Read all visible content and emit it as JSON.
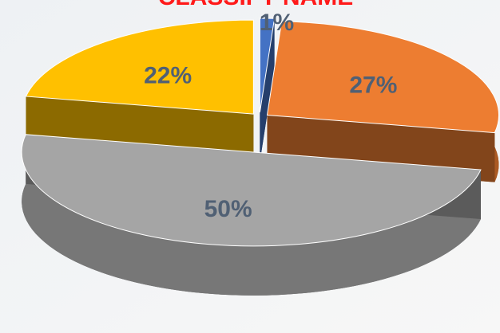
{
  "chart_data": {
    "type": "pie3d",
    "title": "CLASSIFY NAME",
    "values": [
      1,
      27,
      50,
      22
    ],
    "value_labels": [
      "1%",
      "27%",
      "50%",
      "22%"
    ],
    "colors": [
      "#4472c4",
      "#ed7d31",
      "#a5a5a5",
      "#ffc000"
    ]
  }
}
